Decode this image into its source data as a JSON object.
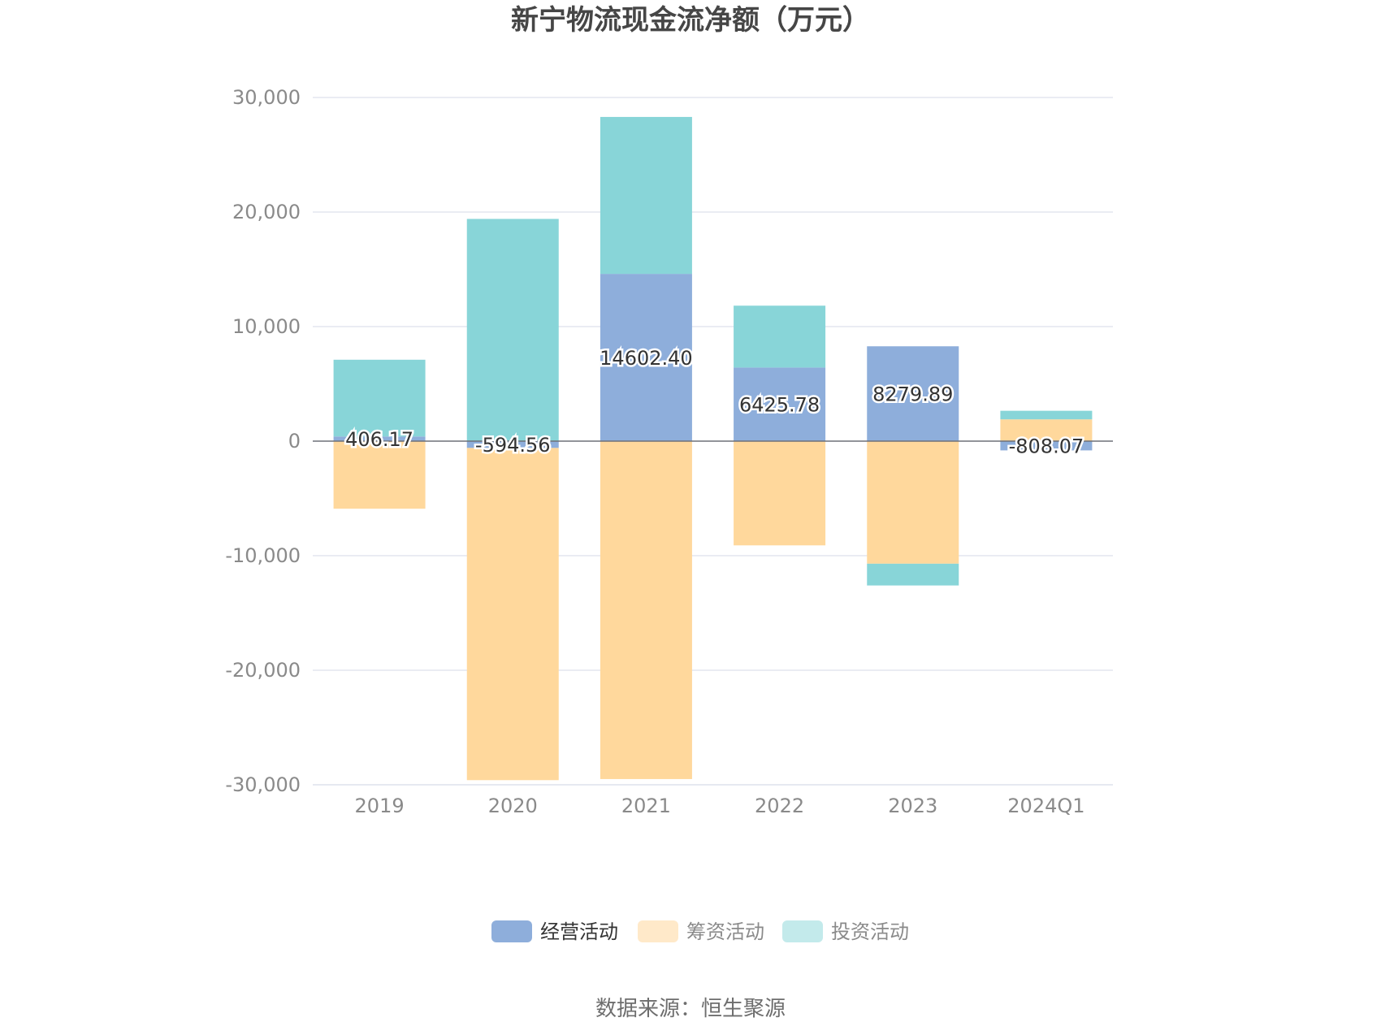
{
  "chart_data": {
    "type": "bar",
    "stacked": true,
    "title": "新宁物流现金流净额（万元）",
    "categories": [
      "2019",
      "2020",
      "2021",
      "2022",
      "2023",
      "2024Q1"
    ],
    "series": [
      {
        "name": "经营活动",
        "color": "#8eaedb",
        "values": [
          406.17,
          -594.56,
          14602.4,
          6425.78,
          8279.89,
          -808.07
        ],
        "labels": [
          "406.17",
          "-594.56",
          "14602.40",
          "6425.78",
          "8279.89",
          "-808.07"
        ]
      },
      {
        "name": "筹资活动",
        "color": "#ffd89c",
        "values": [
          -5900,
          -29000,
          -29500,
          -9100,
          -10700,
          1900
        ]
      },
      {
        "name": "投资活动",
        "color": "#88d5d8",
        "values": [
          6700,
          19400,
          13700,
          5400,
          -1900,
          750
        ]
      }
    ],
    "ylim": [
      -30000,
      30000
    ],
    "yticks": [
      30000,
      20000,
      10000,
      0,
      -10000,
      -20000,
      -30000
    ],
    "ytick_labels": [
      "30,000",
      "20,000",
      "10,000",
      "0",
      "-10,000",
      "-20,000",
      "-30,000"
    ],
    "grid": true,
    "legend_position": "bottom"
  },
  "legend": {
    "items": [
      {
        "label": "经营活动",
        "color": "#8eaedb",
        "text_color": "#333333"
      },
      {
        "label": "筹资活动",
        "color": "#ffe9c9",
        "text_color": "#8a8a8a"
      },
      {
        "label": "投资活动",
        "color": "#c3eaeb",
        "text_color": "#8a8a8a"
      }
    ]
  },
  "source": "数据来源：恒生聚源"
}
